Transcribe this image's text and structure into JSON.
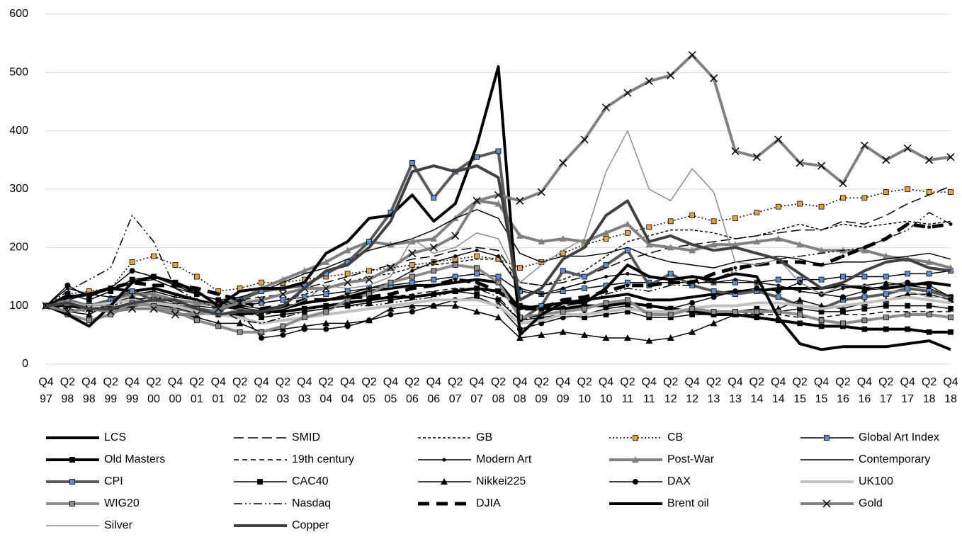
{
  "chart_data": {
    "type": "line",
    "categories": [
      "Q4 97",
      "Q2 98",
      "Q4 98",
      "Q2 99",
      "Q4 99",
      "Q2 00",
      "Q4 00",
      "Q2 01",
      "Q4 01",
      "Q2 02",
      "Q4 02",
      "Q2 03",
      "Q4 03",
      "Q2 04",
      "Q4 04",
      "Q2 05",
      "Q4 05",
      "Q2 06",
      "Q4 06",
      "Q2 07",
      "Q4 07",
      "Q2 08",
      "Q4 08",
      "Q2 09",
      "Q4 09",
      "Q2 10",
      "Q4 10",
      "Q2 11",
      "Q4 11",
      "Q2 12",
      "Q4 12",
      "Q2 13",
      "Q4 13",
      "Q2 14",
      "Q4 14",
      "Q2 15",
      "Q4 15",
      "Q2 16",
      "Q4 16",
      "Q2 17",
      "Q4 17",
      "Q2 18",
      "Q4 18"
    ],
    "ylim": [
      0,
      600
    ],
    "yticks": [
      0,
      100,
      200,
      300,
      400,
      500,
      600
    ],
    "grid": true,
    "series": [
      {
        "name": "LCS",
        "color": "#000000",
        "width": 4,
        "dash": "none",
        "marker": "none",
        "values": [
          100,
          115,
          120,
          130,
          125,
          130,
          120,
          110,
          100,
          95,
          90,
          95,
          105,
          110,
          115,
          125,
          130,
          135,
          135,
          140,
          145,
          140,
          95,
          100,
          105,
          110,
          115,
          120,
          110,
          110,
          115,
          120,
          125,
          125,
          130,
          130,
          130,
          135,
          130,
          130,
          135,
          140,
          135
        ]
      },
      {
        "name": "SMID",
        "color": "#000000",
        "width": 1.5,
        "dash": "14 6",
        "marker": "none",
        "values": [
          100,
          105,
          100,
          110,
          120,
          125,
          115,
          110,
          105,
          110,
          115,
          120,
          130,
          140,
          150,
          160,
          170,
          180,
          185,
          195,
          200,
          195,
          140,
          135,
          140,
          150,
          165,
          180,
          190,
          200,
          205,
          210,
          215,
          220,
          225,
          230,
          230,
          245,
          240,
          255,
          275,
          290,
          305
        ]
      },
      {
        "name": "GB",
        "color": "#000000",
        "width": 1.5,
        "dash": "4 3",
        "marker": "none",
        "values": [
          100,
          100,
          95,
          100,
          110,
          115,
          110,
          105,
          100,
          100,
          105,
          110,
          120,
          130,
          140,
          150,
          155,
          165,
          170,
          175,
          180,
          180,
          140,
          135,
          145,
          160,
          185,
          210,
          220,
          230,
          230,
          225,
          215,
          220,
          230,
          240,
          230,
          240,
          235,
          240,
          245,
          240,
          245
        ]
      },
      {
        "name": "CB",
        "color": "#000000",
        "width": 1.5,
        "dash": "2 3",
        "marker": "square",
        "marker_color": "#e8a33d",
        "values": [
          100,
          120,
          125,
          130,
          175,
          185,
          170,
          150,
          125,
          130,
          140,
          140,
          145,
          150,
          155,
          160,
          165,
          170,
          175,
          180,
          185,
          180,
          165,
          175,
          190,
          205,
          215,
          225,
          235,
          245,
          255,
          245,
          250,
          260,
          270,
          275,
          270,
          285,
          285,
          295,
          300,
          295,
          295
        ]
      },
      {
        "name": "Global Art Index",
        "color": "#000000",
        "width": 1.5,
        "dash": "none",
        "marker": "square",
        "marker_color": "#5b8fd0",
        "values": [
          100,
          105,
          100,
          105,
          110,
          115,
          105,
          100,
          95,
          100,
          105,
          110,
          115,
          120,
          125,
          130,
          135,
          140,
          145,
          150,
          155,
          150,
          125,
          120,
          125,
          130,
          135,
          140,
          140,
          140,
          140,
          140,
          140,
          140,
          145,
          145,
          145,
          150,
          150,
          150,
          155,
          155,
          160
        ]
      },
      {
        "name": "Old Masters",
        "color": "#000000",
        "width": 4,
        "dash": "none",
        "marker": "square",
        "marker_color": "#000000",
        "values": [
          100,
          100,
          95,
          95,
          100,
          105,
          95,
          90,
          85,
          85,
          90,
          90,
          95,
          100,
          105,
          110,
          115,
          115,
          120,
          125,
          130,
          125,
          100,
          95,
          95,
          100,
          100,
          105,
          100,
          95,
          90,
          85,
          85,
          80,
          75,
          70,
          65,
          65,
          60,
          60,
          60,
          55,
          55
        ]
      },
      {
        "name": "19th century",
        "color": "#000000",
        "width": 1.5,
        "dash": "7 5",
        "marker": "none",
        "values": [
          100,
          95,
          90,
          95,
          100,
          100,
          95,
          90,
          85,
          85,
          85,
          90,
          95,
          100,
          105,
          110,
          115,
          120,
          125,
          130,
          130,
          125,
          100,
          95,
          95,
          100,
          100,
          105,
          100,
          95,
          90,
          90,
          90,
          85,
          85,
          80,
          80,
          85,
          85,
          90,
          90,
          90,
          90
        ]
      },
      {
        "name": "Modern Art",
        "color": "#000000",
        "width": 1.5,
        "dash": "none",
        "marker": "dot",
        "marker_color": "#000000",
        "values": [
          100,
          130,
          120,
          115,
          120,
          125,
          115,
          110,
          100,
          100,
          95,
          100,
          105,
          110,
          120,
          130,
          140,
          160,
          175,
          185,
          195,
          185,
          130,
          120,
          130,
          140,
          150,
          155,
          150,
          145,
          150,
          140,
          145,
          140,
          135,
          125,
          120,
          130,
          135,
          140,
          135,
          130,
          115
        ]
      },
      {
        "name": "Post-War",
        "color": "#808080",
        "width": 4,
        "dash": "none",
        "marker": "triangle",
        "marker_color": "#808080",
        "values": [
          100,
          105,
          100,
          110,
          120,
          120,
          110,
          105,
          100,
          110,
          130,
          145,
          160,
          175,
          195,
          210,
          205,
          210,
          215,
          250,
          280,
          275,
          220,
          210,
          215,
          210,
          225,
          240,
          205,
          200,
          195,
          205,
          205,
          210,
          215,
          205,
          195,
          195,
          195,
          185,
          180,
          175,
          165
        ]
      },
      {
        "name": "Contemporary",
        "color": "#000000",
        "width": 1.5,
        "dash": "none",
        "marker": "none",
        "values": [
          100,
          110,
          120,
          130,
          140,
          145,
          130,
          120,
          110,
          115,
          125,
          140,
          155,
          165,
          180,
          195,
          205,
          215,
          230,
          250,
          265,
          250,
          190,
          175,
          185,
          185,
          190,
          200,
          185,
          175,
          170,
          165,
          175,
          180,
          185,
          180,
          170,
          175,
          175,
          180,
          185,
          190,
          180
        ]
      },
      {
        "name": "CPI",
        "color": "#595959",
        "width": 4,
        "dash": "none",
        "marker": "square",
        "marker_color": "#5b8fd0",
        "values": [
          100,
          110,
          100,
          110,
          125,
          110,
          100,
          95,
          90,
          110,
          125,
          130,
          135,
          155,
          175,
          210,
          260,
          345,
          285,
          330,
          355,
          365,
          75,
          100,
          160,
          150,
          170,
          195,
          135,
          155,
          135,
          125,
          120,
          125,
          115,
          100,
          95,
          110,
          115,
          120,
          130,
          125,
          115
        ]
      },
      {
        "name": "CAC40",
        "color": "#000000",
        "width": 1.5,
        "dash": "none",
        "marker": "square",
        "marker_color": "#000000",
        "values": [
          100,
          120,
          110,
          125,
          145,
          150,
          140,
          120,
          110,
          100,
          80,
          85,
          90,
          95,
          100,
          105,
          110,
          115,
          120,
          125,
          120,
          110,
          75,
          80,
          85,
          80,
          85,
          90,
          80,
          80,
          85,
          85,
          90,
          95,
          90,
          95,
          90,
          90,
          95,
          100,
          100,
          100,
          95
        ]
      },
      {
        "name": "Nikkei225",
        "color": "#000000",
        "width": 1.5,
        "dash": "none",
        "marker": "triangle",
        "marker_color": "#000000",
        "values": [
          100,
          90,
          85,
          105,
          115,
          105,
          90,
          80,
          70,
          70,
          55,
          60,
          65,
          70,
          70,
          75,
          95,
          100,
          100,
          100,
          90,
          80,
          45,
          50,
          55,
          50,
          45,
          45,
          40,
          45,
          55,
          70,
          85,
          85,
          95,
          110,
          100,
          95,
          105,
          110,
          120,
          120,
          110
        ]
      },
      {
        "name": "DAX",
        "color": "#000000",
        "width": 1.5,
        "dash": "none",
        "marker": "circle",
        "marker_color": "#000000",
        "values": [
          100,
          135,
          115,
          130,
          160,
          150,
          135,
          120,
          110,
          90,
          45,
          50,
          60,
          60,
          65,
          75,
          85,
          90,
          100,
          110,
          115,
          100,
          60,
          70,
          80,
          85,
          95,
          100,
          85,
          95,
          105,
          115,
          125,
          130,
          125,
          140,
          120,
          115,
          125,
          135,
          140,
          135,
          115
        ]
      },
      {
        "name": "UK100",
        "color": "#c0c0c0",
        "width": 4,
        "dash": "none",
        "marker": "none",
        "values": [
          100,
          105,
          100,
          105,
          110,
          105,
          100,
          90,
          85,
          80,
          70,
          75,
          80,
          85,
          90,
          95,
          100,
          105,
          110,
          110,
          110,
          100,
          70,
          75,
          85,
          85,
          90,
          95,
          90,
          90,
          95,
          100,
          100,
          105,
          105,
          100,
          95,
          100,
          105,
          110,
          115,
          110,
          105
        ]
      },
      {
        "name": "WIG20",
        "color": "#8c8c8c",
        "width": 4,
        "dash": "none",
        "marker": "square",
        "marker_color": "#8c8c8c",
        "values": [
          100,
          85,
          75,
          85,
          105,
          100,
          90,
          75,
          65,
          55,
          55,
          65,
          80,
          90,
          110,
          120,
          140,
          150,
          160,
          170,
          165,
          140,
          80,
          85,
          90,
          95,
          105,
          110,
          85,
          85,
          95,
          90,
          90,
          90,
          90,
          85,
          75,
          70,
          75,
          80,
          85,
          85,
          80
        ]
      },
      {
        "name": "Nasdaq",
        "color": "#000000",
        "width": 1.5,
        "dash": "12 4 2 4 2 4",
        "marker": "none",
        "values": [
          100,
          125,
          145,
          165,
          255,
          210,
          130,
          110,
          95,
          75,
          70,
          80,
          90,
          95,
          100,
          100,
          105,
          110,
          115,
          125,
          130,
          115,
          75,
          85,
          100,
          105,
          120,
          130,
          125,
          135,
          135,
          145,
          160,
          170,
          180,
          185,
          190,
          195,
          200,
          215,
          230,
          260,
          240
        ]
      },
      {
        "name": "DJIA",
        "color": "#000000",
        "width": 5,
        "dash": "16 10",
        "marker": "dot",
        "marker_color": "#000000",
        "values": [
          100,
          115,
          120,
          130,
          140,
          135,
          135,
          130,
          120,
          110,
          95,
          100,
          110,
          110,
          115,
          115,
          120,
          130,
          135,
          145,
          140,
          125,
          95,
          95,
          110,
          115,
          125,
          135,
          135,
          140,
          140,
          155,
          165,
          170,
          175,
          175,
          170,
          185,
          200,
          215,
          240,
          235,
          240
        ]
      },
      {
        "name": "Brent oil",
        "color": "#000000",
        "width": 4,
        "dash": "none",
        "marker": "none",
        "values": [
          100,
          85,
          65,
          100,
          140,
          150,
          140,
          125,
          100,
          125,
          130,
          130,
          140,
          190,
          210,
          250,
          255,
          290,
          245,
          275,
          375,
          510,
          50,
          85,
          105,
          105,
          130,
          170,
          150,
          145,
          150,
          145,
          155,
          150,
          80,
          35,
          25,
          30,
          30,
          30,
          35,
          40,
          25
        ]
      },
      {
        "name": "Gold",
        "color": "#808080",
        "width": 4,
        "dash": "none",
        "marker": "x",
        "marker_color": "#000000",
        "values": [
          100,
          90,
          95,
          90,
          95,
          95,
          85,
          85,
          95,
          105,
          110,
          120,
          130,
          130,
          140,
          145,
          165,
          190,
          200,
          220,
          280,
          290,
          280,
          295,
          345,
          385,
          440,
          465,
          485,
          495,
          530,
          490,
          365,
          355,
          385,
          345,
          340,
          310,
          375,
          350,
          370,
          350,
          355
        ]
      },
      {
        "name": "Silver",
        "color": "#8c8c8c",
        "width": 1.5,
        "dash": "none",
        "marker": "none",
        "values": [
          100,
          110,
          100,
          100,
          100,
          100,
          95,
          85,
          85,
          95,
          90,
          95,
          110,
          135,
          130,
          135,
          150,
          215,
          190,
          200,
          225,
          215,
          140,
          170,
          195,
          215,
          330,
          400,
          300,
          280,
          335,
          295,
          175,
          170,
          180,
          140,
          120,
          135,
          135,
          125,
          125,
          115,
          115
        ]
      },
      {
        "name": "Copper",
        "color": "#404040",
        "width": 4,
        "dash": "none",
        "marker": "none",
        "values": [
          100,
          105,
          95,
          95,
          105,
          110,
          110,
          95,
          85,
          90,
          90,
          100,
          130,
          160,
          170,
          200,
          245,
          330,
          340,
          330,
          340,
          320,
          110,
          130,
          180,
          200,
          255,
          280,
          210,
          220,
          205,
          195,
          200,
          190,
          180,
          155,
          130,
          140,
          160,
          175,
          180,
          165,
          160
        ]
      }
    ]
  }
}
